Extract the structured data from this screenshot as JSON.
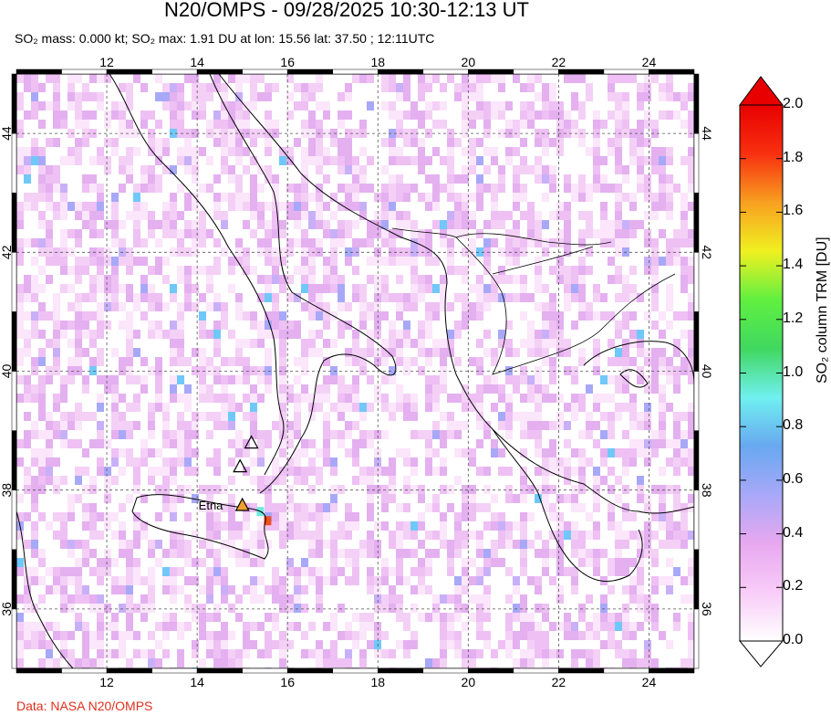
{
  "title": "N20/OMPS - 09/28/2025 10:30-12:13 UT",
  "subtitle": "SO₂ mass: 0.000 kt; SO₂ max: 1.91 DU at lon: 15.56 lat: 37.50 ; 12:11UTC",
  "credit": "Data: NASA N20/OMPS",
  "map": {
    "lon_range": [
      10,
      25
    ],
    "lat_range": [
      35,
      45
    ],
    "lon_ticks": [
      "12",
      "14",
      "16",
      "18",
      "20",
      "22",
      "24"
    ],
    "lat_ticks": [
      "36",
      "38",
      "40",
      "42",
      "44"
    ],
    "volcano_label": "Etna",
    "volcano": {
      "lon": 15.0,
      "lat": 37.75
    },
    "other_volcanoes": [
      {
        "lon": 15.2,
        "lat": 38.8
      },
      {
        "lon": 14.95,
        "lat": 38.4
      }
    ],
    "max_location": {
      "lon": 15.56,
      "lat": 37.5,
      "value": 1.91
    }
  },
  "colorbar": {
    "title": "SO₂ column TRM [DU]",
    "ticks": [
      "0.0",
      "0.2",
      "0.4",
      "0.6",
      "0.8",
      "1.0",
      "1.2",
      "1.4",
      "1.6",
      "1.8",
      "2.0"
    ],
    "range": [
      0,
      2
    ],
    "colors": [
      "#ffffff",
      "#f8ccf8",
      "#e8a8f0",
      "#a8a8f8",
      "#68a8f0",
      "#70f0f0",
      "#40d860",
      "#60f040",
      "#f0f020",
      "#f8a020",
      "#f83010",
      "#e80000"
    ]
  }
}
